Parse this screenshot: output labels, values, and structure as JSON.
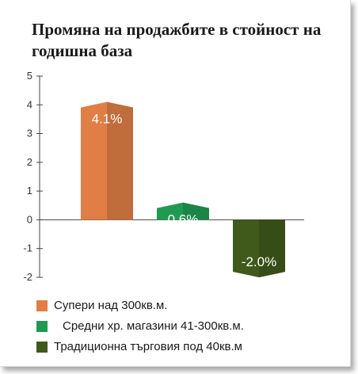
{
  "chart_data": {
    "type": "bar",
    "title": "Промяна на продажбите в стойност на годишна база",
    "categories": [
      "Супери над 300кв.м.",
      "Средни хр. магазини 41-300кв.м.",
      "Традиционна търговия под 40кв.м"
    ],
    "values": [
      4.1,
      0.6,
      -2.0
    ],
    "data_labels": [
      "4.1%",
      "0.6%",
      "-2.0%"
    ],
    "colors": [
      "#e07e45",
      "#1f9a52",
      "#3f5a1b"
    ],
    "ylim": [
      -2,
      5
    ],
    "yticks": [
      "-2",
      "-1",
      "0",
      "1",
      "2",
      "3",
      "4",
      "5"
    ],
    "grid": false,
    "legend_position": "bottom-left"
  }
}
